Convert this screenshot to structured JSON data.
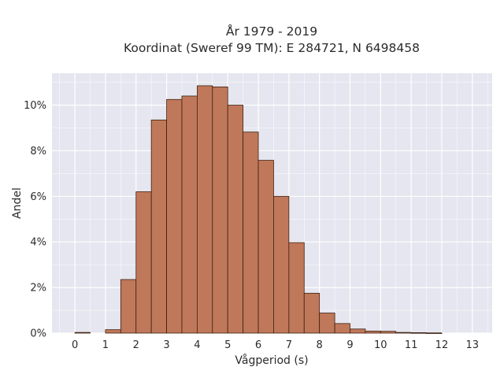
{
  "chart_data": {
    "type": "bar",
    "title_line1": "År 1979 - 2019",
    "title_line2": "Koordinat (Sweref 99 TM): E 284721, N 6498458",
    "xlabel": "Vågperiod (s)",
    "ylabel": "Andel",
    "xlim": [
      -0.75,
      13.65
    ],
    "ylim": [
      0,
      0.114
    ],
    "x_ticks": [
      0,
      1,
      2,
      3,
      4,
      5,
      6,
      7,
      8,
      9,
      10,
      11,
      12,
      13
    ],
    "y_ticks": [
      0,
      0.02,
      0.04,
      0.06,
      0.08,
      0.1
    ],
    "y_tick_labels": [
      "0%",
      "2%",
      "4%",
      "6%",
      "8%",
      "10%"
    ],
    "bin_width": 0.5,
    "bin_starts": [
      0,
      0.5,
      1,
      1.5,
      2,
      2.5,
      3,
      3.5,
      4,
      4.5,
      5,
      5.5,
      6,
      6.5,
      7,
      7.5,
      8,
      8.5,
      9,
      9.5,
      10,
      10.5,
      11,
      11.5,
      12,
      12.5
    ],
    "values": [
      0.0003,
      0,
      0.0015,
      0.0235,
      0.062,
      0.0935,
      0.1025,
      0.104,
      0.1085,
      0.108,
      0.1,
      0.0882,
      0.0758,
      0.06,
      0.0397,
      0.0175,
      0.0088,
      0.0042,
      0.0018,
      0.0009,
      0.0008,
      0.0003,
      0.0002,
      0.0001,
      0,
      0
    ],
    "grid": true,
    "colors": {
      "bar_fill": "#c0785a",
      "bar_edge": "#3d2010",
      "plot_bg": "#e5e6ef",
      "grid": "#ffffff"
    }
  }
}
